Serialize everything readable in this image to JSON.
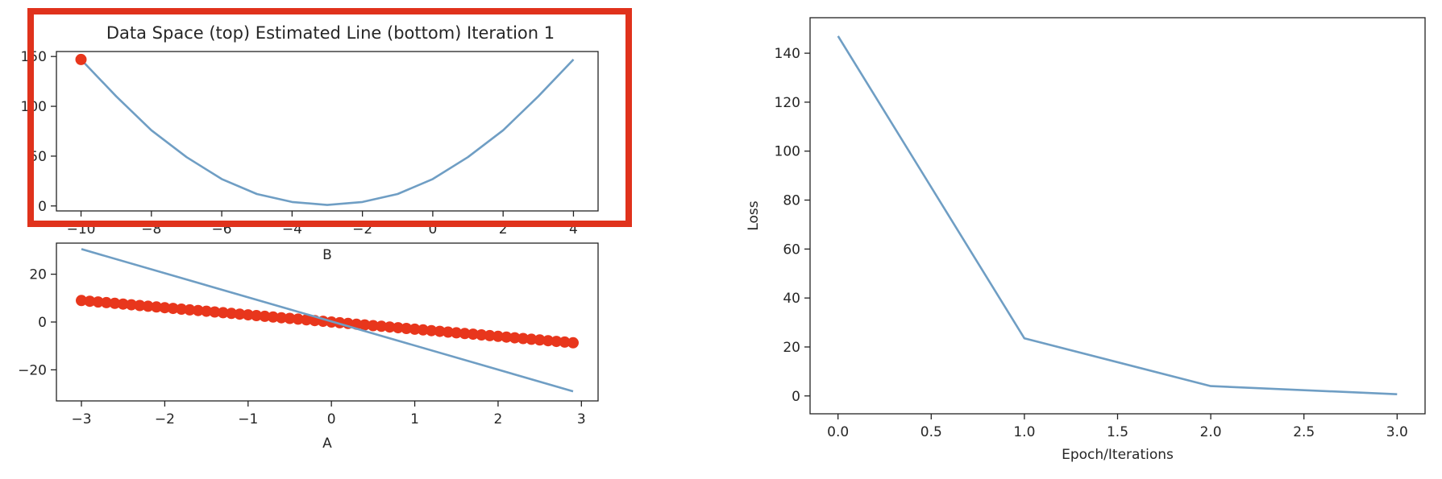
{
  "colors": {
    "line": "#6f9ec4",
    "points": "#e8361c",
    "highlight_box": "#e0321c"
  },
  "chart_data": [
    {
      "id": "parameter-space",
      "type": "line",
      "title": "Data Space (top) Estimated Line (bottom) Iteration 1",
      "xlabel": "B",
      "ylabel": "",
      "xlim": [
        -10.7,
        4.7
      ],
      "ylim": [
        -5,
        155
      ],
      "xticks": [
        -10,
        -8,
        -6,
        -4,
        -2,
        0,
        2,
        4
      ],
      "xtick_labels": [
        "−10",
        "−8",
        "−6",
        "−4",
        "−2",
        "0",
        "2",
        "4"
      ],
      "yticks": [
        0,
        50,
        100,
        150
      ],
      "ytick_labels": [
        "0",
        "50",
        "100",
        "150"
      ],
      "grid": false,
      "highlighted": true,
      "series": [
        {
          "kind": "line",
          "x": [
            -10,
            -9,
            -8,
            -7,
            -6,
            -5,
            -4,
            -3,
            -2,
            -1,
            0,
            1,
            2,
            3,
            4
          ],
          "y": [
            147,
            110,
            76,
            49,
            27,
            12,
            4,
            1,
            4,
            12,
            27,
            49,
            76,
            110,
            147
          ]
        },
        {
          "kind": "scatter",
          "x": [
            -10
          ],
          "y": [
            147
          ]
        }
      ]
    },
    {
      "id": "estimated-line",
      "type": "scatter",
      "title": "",
      "xlabel": "A",
      "ylabel": "",
      "xlim": [
        -3.3,
        3.2
      ],
      "ylim": [
        -33,
        33
      ],
      "xticks": [
        -3,
        -2,
        -1,
        0,
        1,
        2,
        3
      ],
      "xtick_labels": [
        "−3",
        "−2",
        "−1",
        "0",
        "1",
        "2",
        "3"
      ],
      "yticks": [
        -20,
        0,
        20
      ],
      "ytick_labels": [
        "−20",
        "0",
        "20"
      ],
      "grid": false,
      "series": [
        {
          "kind": "scatter",
          "x": [
            -3.0,
            -2.9,
            -2.8,
            -2.7,
            -2.6,
            -2.5,
            -2.4,
            -2.3,
            -2.2,
            -2.1,
            -2.0,
            -1.9,
            -1.8,
            -1.7,
            -1.6,
            -1.5,
            -1.4,
            -1.3,
            -1.2,
            -1.1,
            -1.0,
            -0.9,
            -0.8,
            -0.7,
            -0.6,
            -0.5,
            -0.4,
            -0.3,
            -0.2,
            -0.1,
            0.0,
            0.1,
            0.2,
            0.3,
            0.4,
            0.5,
            0.6,
            0.7,
            0.8,
            0.9,
            1.0,
            1.1,
            1.2,
            1.3,
            1.4,
            1.5,
            1.6,
            1.7,
            1.8,
            1.9,
            2.0,
            2.1,
            2.2,
            2.3,
            2.4,
            2.5,
            2.6,
            2.7,
            2.8,
            2.9
          ],
          "y": [
            9.0,
            8.7,
            8.4,
            8.1,
            7.8,
            7.5,
            7.2,
            6.9,
            6.6,
            6.3,
            6.0,
            5.7,
            5.4,
            5.1,
            4.8,
            4.5,
            4.2,
            3.9,
            3.6,
            3.3,
            3.0,
            2.7,
            2.4,
            2.1,
            1.8,
            1.5,
            1.2,
            0.9,
            0.6,
            0.3,
            0.0,
            -0.3,
            -0.6,
            -0.9,
            -1.2,
            -1.5,
            -1.8,
            -2.1,
            -2.4,
            -2.7,
            -3.0,
            -3.3,
            -3.6,
            -3.9,
            -4.2,
            -4.5,
            -4.8,
            -5.1,
            -5.4,
            -5.7,
            -6.0,
            -6.3,
            -6.6,
            -6.9,
            -7.2,
            -7.5,
            -7.8,
            -8.1,
            -8.4,
            -8.7
          ]
        },
        {
          "kind": "line",
          "x": [
            -3.0,
            2.9
          ],
          "y": [
            30.5,
            -29.0
          ]
        }
      ]
    },
    {
      "id": "loss",
      "type": "line",
      "title": "",
      "xlabel": "Epoch/Iterations",
      "ylabel": "Loss",
      "xlim": [
        -0.15,
        3.15
      ],
      "ylim": [
        -7.3,
        154.5
      ],
      "xticks": [
        0.0,
        0.5,
        1.0,
        1.5,
        2.0,
        2.5,
        3.0
      ],
      "xtick_labels": [
        "0.0",
        "0.5",
        "1.0",
        "1.5",
        "2.0",
        "2.5",
        "3.0"
      ],
      "yticks": [
        0,
        20,
        40,
        60,
        80,
        100,
        120,
        140
      ],
      "ytick_labels": [
        "0",
        "20",
        "40",
        "60",
        "80",
        "100",
        "120",
        "140"
      ],
      "grid": false,
      "series": [
        {
          "kind": "line",
          "x": [
            0,
            1,
            2,
            3
          ],
          "y": [
            147,
            23.5,
            4,
            0.7
          ]
        }
      ]
    }
  ]
}
